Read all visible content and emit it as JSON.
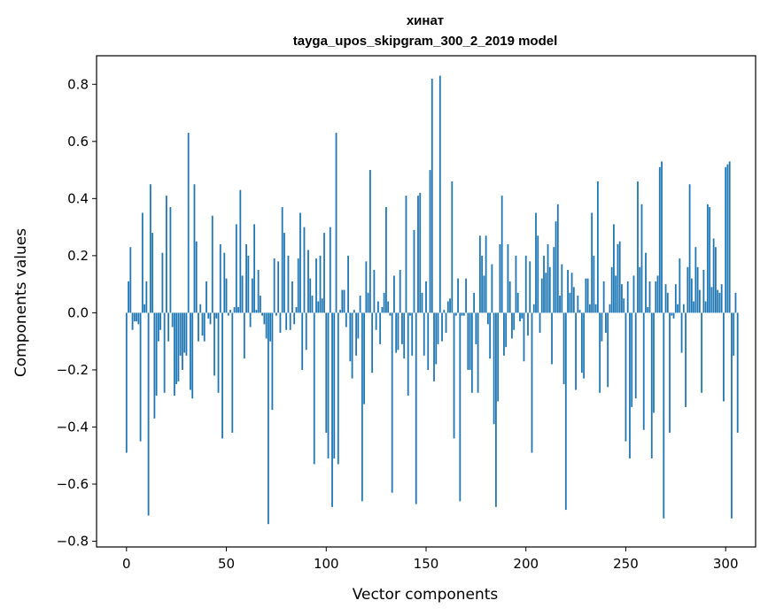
{
  "chart_data": {
    "type": "bar",
    "title": "хинат",
    "subtitle": "tayga_upos_skipgram_300_2_2019 model",
    "xlabel": "Vector components",
    "ylabel": "Components values",
    "xlim": [
      -15,
      315
    ],
    "ylim": [
      -0.82,
      0.9
    ],
    "xticks": [
      0,
      50,
      100,
      150,
      200,
      250,
      300
    ],
    "xtick_labels": [
      "0",
      "50",
      "100",
      "150",
      "200",
      "250",
      "300"
    ],
    "yticks": [
      -0.8,
      -0.6,
      -0.4,
      -0.2,
      0.0,
      0.2,
      0.4,
      0.6,
      0.8
    ],
    "ytick_labels": [
      "−0.8",
      "−0.6",
      "−0.4",
      "−0.2",
      "0.0",
      "0.2",
      "0.4",
      "0.6",
      "0.8"
    ],
    "bar_color": "#1f77b4",
    "grid": false,
    "values": [
      -0.49,
      0.11,
      0.23,
      -0.06,
      -0.03,
      -0.03,
      -0.04,
      -0.45,
      0.35,
      0.03,
      0.11,
      -0.71,
      0.45,
      0.28,
      -0.37,
      -0.29,
      -0.1,
      -0.06,
      0.21,
      -0.28,
      0.41,
      -0.1,
      0.37,
      -0.05,
      -0.29,
      -0.25,
      -0.24,
      -0.15,
      -0.2,
      -0.14,
      -0.15,
      0.63,
      -0.27,
      -0.3,
      0.45,
      0.25,
      -0.1,
      0.03,
      -0.08,
      -0.1,
      0.11,
      -0.02,
      -0.04,
      0.34,
      -0.22,
      -0.02,
      -0.28,
      0.24,
      -0.44,
      0.21,
      0.12,
      -0.01,
      0.01,
      -0.42,
      0.02,
      0.31,
      0.02,
      0.43,
      0.13,
      -0.16,
      0.24,
      0.2,
      -0.05,
      0.12,
      0.31,
      0.01,
      0.15,
      0.06,
      -0.01,
      -0.04,
      -0.09,
      -0.74,
      -0.1,
      -0.34,
      0.19,
      -0.01,
      0.18,
      -0.07,
      0.37,
      0.28,
      -0.06,
      0.2,
      -0.06,
      0.11,
      -0.04,
      0.02,
      0.19,
      0.35,
      -0.2,
      0.3,
      -0.13,
      0.22,
      0.12,
      0.06,
      -0.53,
      0.19,
      0.04,
      0.2,
      0.05,
      0.28,
      -0.42,
      -0.51,
      0.3,
      -0.68,
      -0.51,
      0.63,
      -0.53,
      0.01,
      0.08,
      0.08,
      -0.05,
      0.2,
      -0.17,
      -0.23,
      0.01,
      -0.15,
      -0.09,
      0.06,
      -0.66,
      -0.32,
      0.18,
      0.07,
      0.5,
      -0.21,
      0.15,
      -0.06,
      0.04,
      -0.11,
      0.02,
      0.07,
      0.37,
      0.04,
      -0.01,
      -0.63,
      0.13,
      -0.14,
      -0.13,
      0.15,
      -0.11,
      -0.16,
      0.41,
      -0.29,
      -0.01,
      -0.15,
      0.29,
      -0.67,
      0.41,
      0.42,
      0.07,
      -0.15,
      0.11,
      -0.2,
      0.5,
      0.82,
      -0.24,
      -0.18,
      -0.11,
      0.83,
      -0.1,
      0.01,
      -0.07,
      0.04,
      0.05,
      0.46,
      -0.44,
      -0.01,
      0.12,
      -0.66,
      -0.01,
      -0.01,
      0.12,
      -0.2,
      -0.2,
      -0.28,
      0.07,
      -0.11,
      -0.28,
      0.27,
      0.2,
      0.13,
      0.27,
      -0.04,
      -0.16,
      0.17,
      -0.39,
      -0.68,
      -0.31,
      0.24,
      0.41,
      -0.15,
      -0.12,
      0.24,
      0.11,
      -0.09,
      -0.06,
      0.2,
      0.07,
      -0.03,
      -0.02,
      -0.17,
      0.2,
      -0.08,
      0.18,
      -0.49,
      0.03,
      0.35,
      0.27,
      -0.07,
      0.12,
      0.2,
      0.14,
      0.24,
      0.16,
      -0.18,
      0.23,
      0.32,
      0.38,
      0.06,
      0.17,
      -0.25,
      -0.69,
      0.15,
      0.07,
      0.14,
      0.09,
      -0.27,
      0.06,
      0.01,
      -0.21,
      -0.23,
      0.12,
      0.12,
      0.03,
      0.35,
      0.2,
      0.03,
      0.46,
      -0.28,
      -0.1,
      0.11,
      -0.07,
      -0.26,
      0.03,
      0.16,
      0.31,
      0.13,
      0.24,
      0.25,
      0.1,
      0.05,
      -0.45,
      0.11,
      -0.51,
      -0.33,
      0.13,
      -0.3,
      0.46,
      0.16,
      0.38,
      -0.41,
      0.21,
      0.02,
      0.11,
      -0.51,
      -0.35,
      0.11,
      0.13,
      0.51,
      0.53,
      -0.72,
      0.1,
      0.07,
      -0.42,
      -0.01,
      -0.02,
      0.1,
      0.03,
      0.19,
      -0.14,
      0.03,
      -0.33,
      0.16,
      0.45,
      0.12,
      0.04,
      0.23,
      0.16,
      0.08,
      -0.28,
      0.15,
      0.04,
      0.38,
      0.37,
      0.09,
      0.26,
      0.23,
      0.08,
      0.07,
      0.1,
      -0.31,
      0.51,
      0.52,
      0.53,
      -0.72,
      -0.15,
      0.07,
      -0.42
    ]
  }
}
